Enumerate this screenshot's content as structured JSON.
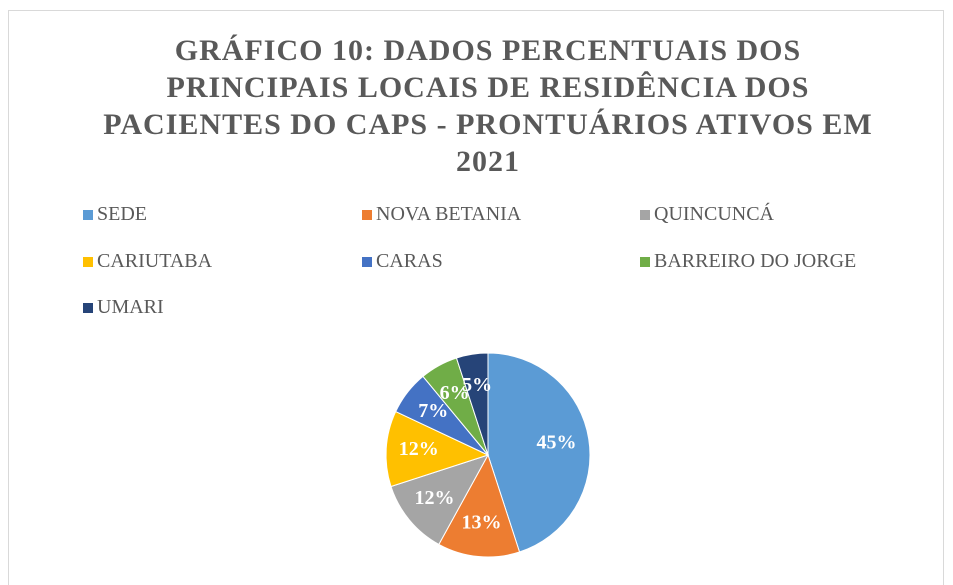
{
  "chart_data": {
    "type": "pie",
    "title": "GRÁFICO 10: DADOS PERCENTUAIS DOS PRINCIPAIS LOCAIS DE RESIDÊNCIA DOS PACIENTES DO CAPS - PRONTUÁRIOS ATIVOS EM 2021",
    "categories": [
      "SEDE",
      "NOVA BETANIA",
      "QUINCUNCÁ",
      "CARIUTABA",
      "CARAS",
      "BARREIRO DO JORGE",
      "UMARI"
    ],
    "values": [
      45,
      13,
      12,
      12,
      7,
      6,
      5
    ],
    "value_labels": [
      "45%",
      "13%",
      "12%",
      "12%",
      "7%",
      "6%",
      "5%"
    ],
    "colors": [
      "#5b9bd5",
      "#ed7d31",
      "#a5a5a5",
      "#ffc000",
      "#4472c4",
      "#70ad47",
      "#264478"
    ],
    "legend": "top"
  }
}
